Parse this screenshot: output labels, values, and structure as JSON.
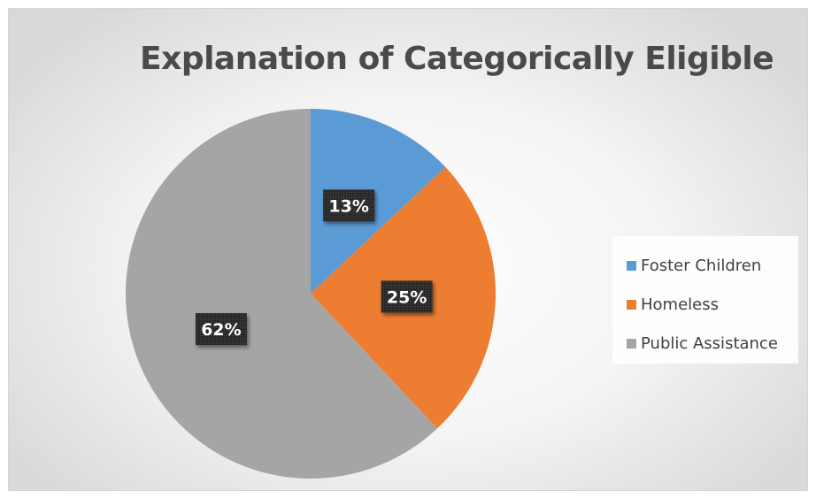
{
  "chart_data": {
    "type": "pie",
    "title": "Explanation of Categorically Eligible",
    "slices": [
      {
        "label": "Foster Children",
        "value": 13,
        "data_label": "13%",
        "color": "#5b9bd5"
      },
      {
        "label": "Homeless",
        "value": 25,
        "data_label": "25%",
        "color": "#ed7d31"
      },
      {
        "label": "Public Assistance",
        "value": 62,
        "data_label": "62%",
        "color": "#a5a5a5"
      }
    ],
    "start_angle": "12 o'clock",
    "direction": "clockwise",
    "legend_position": "right"
  }
}
